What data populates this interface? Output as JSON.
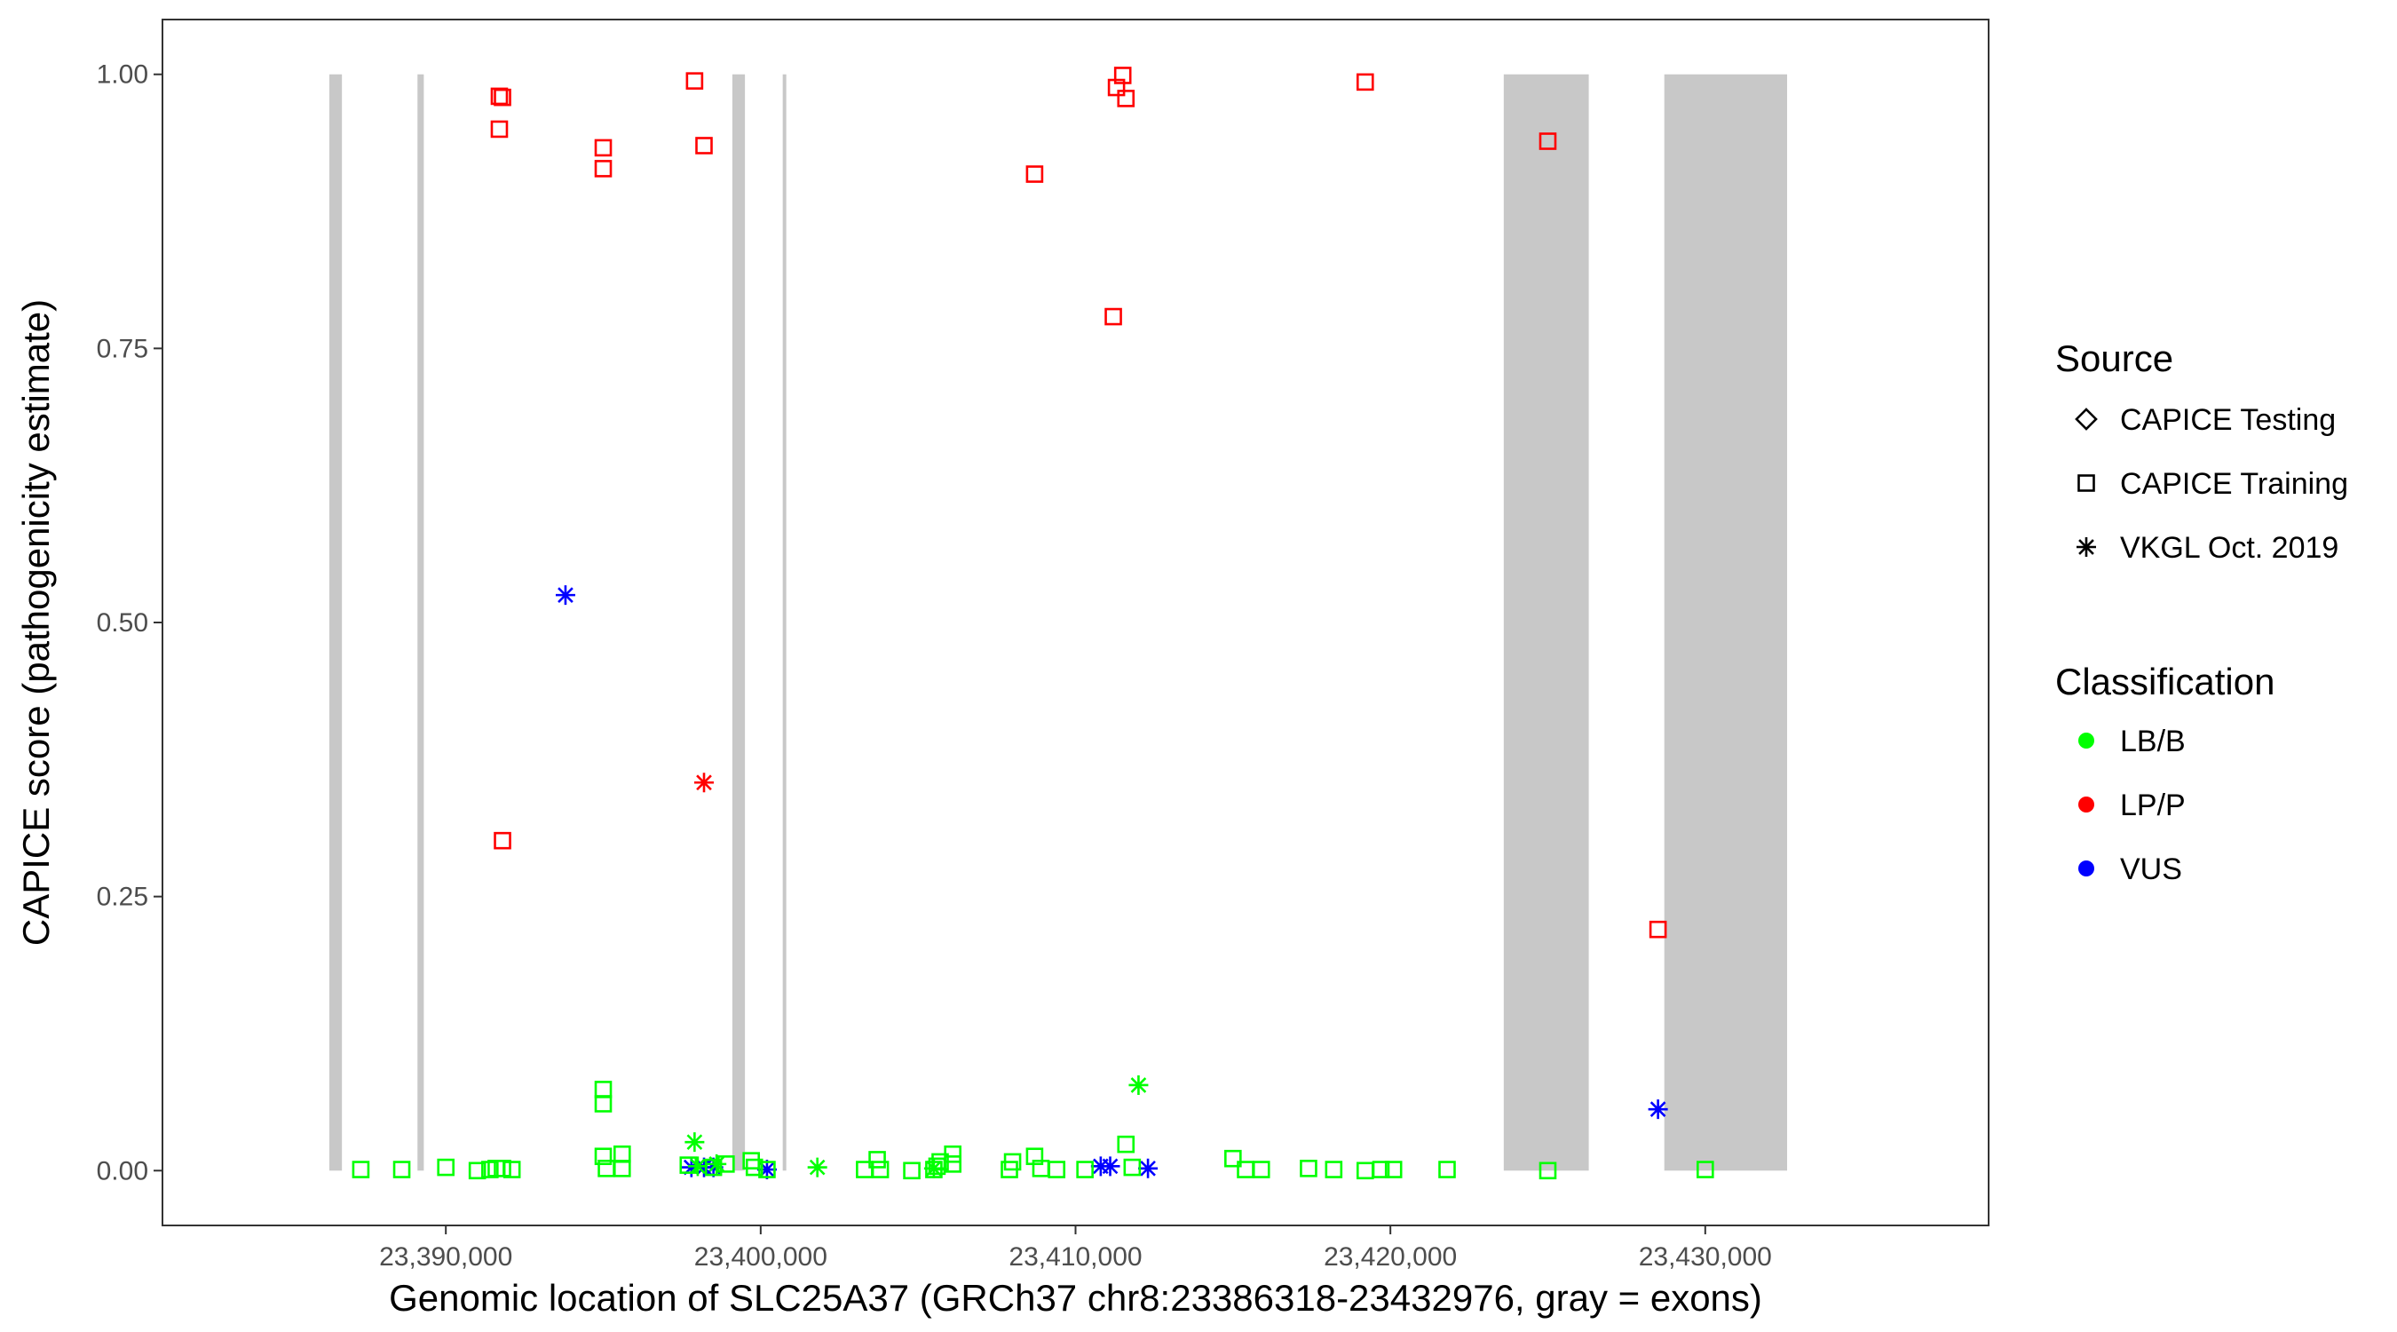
{
  "chart_data": {
    "type": "scatter",
    "xlabel": "Genomic location of SLC25A37 (GRCh37 chr8:23386318-23432976, gray = exons)",
    "ylabel": "CAPICE score (pathogenicity estimate)",
    "xlim": [
      23381000,
      23439000
    ],
    "ylim": [
      -0.05,
      1.05
    ],
    "x_ticks": [
      23390000,
      23400000,
      23410000,
      23420000,
      23430000
    ],
    "x_tick_labels": [
      "23,390,000",
      "23,400,000",
      "23,410,000",
      "23,420,000",
      "23,430,000"
    ],
    "y_ticks": [
      0.0,
      0.25,
      0.5,
      0.75,
      1.0
    ],
    "y_tick_labels": [
      "0.00",
      "0.25",
      "0.50",
      "0.75",
      "1.00"
    ],
    "grid": false,
    "exons": [
      [
        23386300,
        23386700
      ],
      [
        23389100,
        23389300
      ],
      [
        23399100,
        23399500
      ],
      [
        23400700,
        23400800
      ],
      [
        23423600,
        23426300
      ],
      [
        23428700,
        23432600
      ]
    ],
    "exon_color": "#c8c8c8",
    "legend_position": "right",
    "legend": {
      "source_title": "Source",
      "source_items": [
        {
          "label": "CAPICE Testing",
          "shape": "diamond"
        },
        {
          "label": "CAPICE Training",
          "shape": "square"
        },
        {
          "label": "VKGL Oct. 2019",
          "shape": "asterisk"
        }
      ],
      "classification_title": "Classification",
      "classification_items": [
        {
          "label": "LB/B",
          "color": "#00ff00"
        },
        {
          "label": "LP/P",
          "color": "#ff0000"
        },
        {
          "label": "VUS",
          "color": "#0000ff"
        }
      ]
    },
    "series": [
      {
        "name": "LP/P",
        "source": "CAPICE Training",
        "shape": "square",
        "color": "#ff0000",
        "points": [
          [
            23391700,
            0.98
          ],
          [
            23391800,
            0.979
          ],
          [
            23391700,
            0.95
          ],
          [
            23395000,
            0.933
          ],
          [
            23395000,
            0.914
          ],
          [
            23397900,
            0.994
          ],
          [
            23398200,
            0.935
          ],
          [
            23391800,
            0.301
          ],
          [
            23408700,
            0.909
          ],
          [
            23411300,
            0.988
          ],
          [
            23411500,
            0.999
          ],
          [
            23411600,
            0.978
          ],
          [
            23411200,
            0.779
          ],
          [
            23419200,
            0.993
          ],
          [
            23425000,
            0.939
          ],
          [
            23428500,
            0.22
          ]
        ]
      },
      {
        "name": "LP/P",
        "source": "VKGL Oct. 2019",
        "shape": "asterisk",
        "color": "#ff0000",
        "points": [
          [
            23398200,
            0.354
          ]
        ]
      },
      {
        "name": "VUS",
        "source": "VKGL Oct. 2019",
        "shape": "asterisk",
        "color": "#0000ff",
        "points": [
          [
            23393800,
            0.525
          ],
          [
            23428500,
            0.056
          ],
          [
            23397800,
            0.003
          ],
          [
            23398200,
            0.003
          ],
          [
            23398500,
            0.003
          ],
          [
            23400200,
            0.001
          ],
          [
            23410800,
            0.004
          ],
          [
            23411100,
            0.004
          ],
          [
            23412300,
            0.002
          ]
        ]
      },
      {
        "name": "LB/B",
        "source": "VKGL Oct. 2019",
        "shape": "asterisk",
        "color": "#00ff00",
        "points": [
          [
            23397900,
            0.026
          ],
          [
            23398000,
            0.004
          ],
          [
            23398600,
            0.006
          ],
          [
            23401800,
            0.003
          ],
          [
            23405500,
            0.002
          ],
          [
            23412000,
            0.078
          ]
        ]
      },
      {
        "name": "LB/B",
        "source": "CAPICE Training",
        "shape": "square",
        "color": "#00ff00",
        "points": [
          [
            23387300,
            0.001
          ],
          [
            23388600,
            0.001
          ],
          [
            23390000,
            0.003
          ],
          [
            23391000,
            0.0
          ],
          [
            23391400,
            0.001
          ],
          [
            23391600,
            0.002
          ],
          [
            23391800,
            0.002
          ],
          [
            23392100,
            0.001
          ],
          [
            23395000,
            0.074
          ],
          [
            23395000,
            0.061
          ],
          [
            23395000,
            0.013
          ],
          [
            23395600,
            0.015
          ],
          [
            23395100,
            0.002
          ],
          [
            23395600,
            0.002
          ],
          [
            23397700,
            0.005
          ],
          [
            23398500,
            0.003
          ],
          [
            23398900,
            0.006
          ],
          [
            23399700,
            0.009
          ],
          [
            23399800,
            0.003
          ],
          [
            23400200,
            0.001
          ],
          [
            23403300,
            0.001
          ],
          [
            23403700,
            0.01
          ],
          [
            23403800,
            0.001
          ],
          [
            23404800,
            0.0
          ],
          [
            23405500,
            0.001
          ],
          [
            23405600,
            0.004
          ],
          [
            23405700,
            0.008
          ],
          [
            23406100,
            0.015
          ],
          [
            23406100,
            0.006
          ],
          [
            23407900,
            0.001
          ],
          [
            23408000,
            0.008
          ],
          [
            23408700,
            0.013
          ],
          [
            23408900,
            0.002
          ],
          [
            23409400,
            0.001
          ],
          [
            23410300,
            0.001
          ],
          [
            23411600,
            0.024
          ],
          [
            23411800,
            0.003
          ],
          [
            23415000,
            0.011
          ],
          [
            23415400,
            0.001
          ],
          [
            23415900,
            0.001
          ],
          [
            23417400,
            0.002
          ],
          [
            23418200,
            0.001
          ],
          [
            23419200,
            0.0
          ],
          [
            23419700,
            0.001
          ],
          [
            23420100,
            0.001
          ],
          [
            23421800,
            0.001
          ],
          [
            23425000,
            0.0
          ],
          [
            23430000,
            0.001
          ]
        ]
      }
    ]
  }
}
